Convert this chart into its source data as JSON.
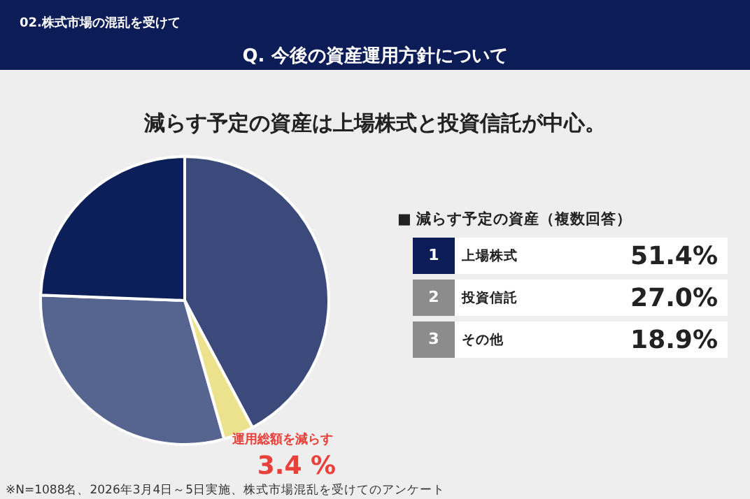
{
  "chart_data": [
    {
      "type": "pie",
      "title": "Q. 今後の資産運用方針について",
      "subtitle": "減らす予定の資産は上場株式と投資信託が中心。",
      "categories": [
        null,
        "運用総額を減らす",
        null,
        null
      ],
      "values": [
        42.2,
        3.4,
        30.0,
        24.4
      ],
      "colors": [
        "#3b4a7a",
        "#ece28e",
        "#55658f",
        "#0c1f59"
      ],
      "value_labels": [
        null,
        "3.4 %",
        null,
        null
      ],
      "annotations": [
        "02.株式市場の混乱を受けて",
        "※N=1088名、2026年3月4日～5日実施、株式市場混乱を受けてのアンケート"
      ]
    },
    {
      "type": "other",
      "title": "■ 減らす予定の資産（複数回答）",
      "categories": [
        "上場株式",
        "投資信託",
        "その他"
      ],
      "value_labels": [
        "51.4%",
        "27.0%",
        "18.9%"
      ],
      "annotations": [
        "1",
        "2",
        "3"
      ]
    }
  ]
}
